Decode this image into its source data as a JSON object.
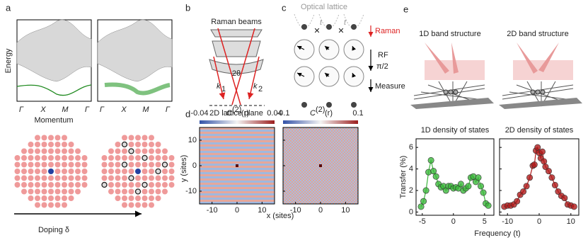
{
  "panels": {
    "a": "a",
    "b": "b",
    "c": "c",
    "d": "d",
    "e": "e"
  },
  "band": {
    "y_label": "Energy",
    "x_label": "Momentum",
    "ticks": [
      "Γ",
      "X",
      "M",
      "Γ"
    ],
    "doping": "Doping δ"
  },
  "raman": {
    "title": "Raman beams",
    "angle": "2θ",
    "k": "k",
    "k1_sub": "1",
    "k2_sub": "2",
    "plane": "2D lattice plane"
  },
  "sequence": {
    "title": "Optical lattice",
    "hop": "t",
    "raman": "Raman",
    "rf": "RF",
    "pulse": "π/2",
    "measure": "Measure"
  },
  "correlation": {
    "y_label": "y (sites)",
    "x_label": "x (sites)",
    "xlim": [
      -15,
      15
    ],
    "ylim": [
      -15,
      15
    ],
    "xticks": [
      -10,
      0,
      10
    ],
    "yticks": [
      10,
      0,
      -10
    ],
    "maps": [
      {
        "symbol": "C",
        "sup": "(2)",
        "arg": "(r)",
        "clim": [
          -0.04,
          0.04
        ]
      },
      {
        "symbol": "C",
        "sup": "(2)",
        "arg": "(r)",
        "clim": [
          -0.1,
          0.1
        ]
      }
    ]
  },
  "structure": [
    "1D band structure",
    "2D band structure"
  ],
  "chart_data": [
    {
      "type": "scatter",
      "title": "1D density of states",
      "x_label": "Frequency (t)",
      "y_label": "Transfer (%)",
      "color": "#3cb83c",
      "x": [
        -5.2,
        -4.8,
        -4.4,
        -4.0,
        -3.6,
        -3.2,
        -2.8,
        -2.4,
        -2.0,
        -1.6,
        -1.2,
        -0.8,
        -0.4,
        0,
        0.4,
        0.8,
        1.2,
        1.6,
        2.0,
        2.4,
        2.8,
        3.2,
        3.6,
        4.0,
        4.4,
        4.8,
        5.2,
        5.6
      ],
      "values": [
        0.5,
        1.0,
        2.0,
        3.7,
        4.8,
        3.8,
        3.3,
        2.6,
        2.3,
        2.4,
        2.0,
        2.4,
        2.4,
        2.2,
        2.3,
        2.2,
        2.6,
        2.0,
        2.2,
        2.4,
        3.2,
        3.3,
        2.8,
        3.2,
        2.4,
        1.8,
        0.8,
        0.6
      ],
      "xlim": [
        -6,
        6.5
      ],
      "ylim": [
        -0.3,
        6.8
      ],
      "xticks": [
        -5,
        0,
        5
      ],
      "yticks": [
        0,
        2,
        4,
        6
      ]
    },
    {
      "type": "scatter",
      "title": "2D density of states",
      "x_label": "Frequency (t)",
      "color": "#b01c1c",
      "x": [
        -11,
        -10,
        -9,
        -8,
        -7,
        -6,
        -5,
        -4,
        -3,
        -2,
        -1.5,
        -1,
        -0.5,
        0,
        0.5,
        1,
        1.5,
        2,
        3,
        4,
        5,
        6,
        7,
        8,
        9,
        10,
        11
      ],
      "values": [
        0.5,
        0.6,
        0.6,
        0.7,
        1.0,
        1.6,
        1.9,
        2.4,
        3.2,
        4.3,
        4.4,
        5.7,
        6.0,
        5.5,
        5.0,
        5.6,
        4.7,
        4.2,
        3.8,
        3.2,
        2.5,
        1.9,
        1.5,
        1.3,
        0.7,
        0.6,
        0.5
      ],
      "xlim": [
        -12.5,
        12.5
      ],
      "ylim": [
        -0.3,
        6.8
      ],
      "xticks": [
        -10,
        0,
        10
      ],
      "yticks": [
        0,
        2,
        4,
        6
      ]
    }
  ]
}
